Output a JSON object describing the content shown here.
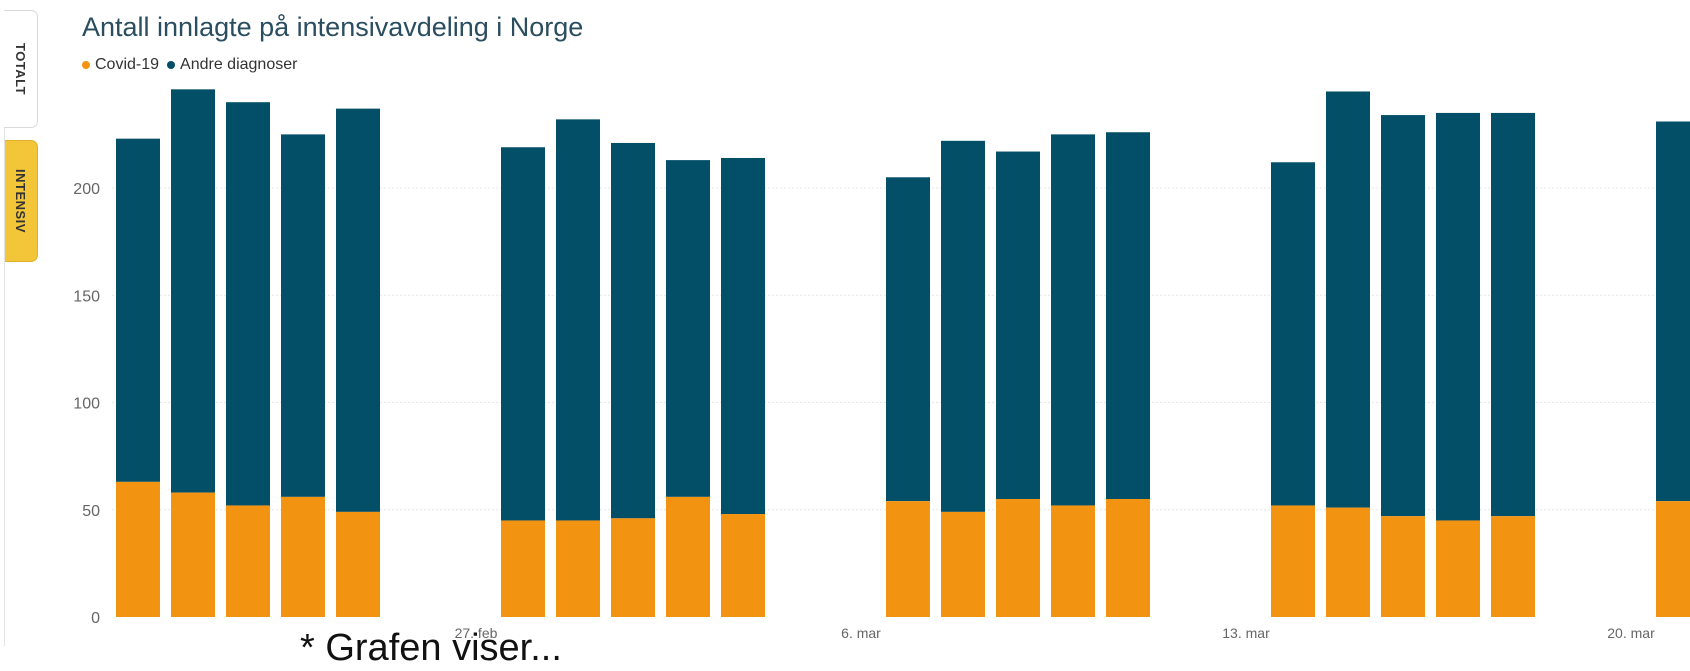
{
  "tabs": [
    {
      "label": "TOTALT",
      "active": false
    },
    {
      "label": "INTENSIV",
      "active": true
    }
  ],
  "colors": {
    "covid": "#f39312",
    "andre": "#044f68",
    "tab_active": "#f3c63a",
    "grid": "#e6e6e6"
  },
  "footnote": "* Grafen viser...",
  "chart_data": {
    "type": "bar",
    "stacked": true,
    "title": "Antall innlagte på intensivavdeling i Norge",
    "legend": [
      "Covid-19",
      "Andre diagnoser"
    ],
    "legend_placement": "top-left",
    "grid": true,
    "ylim": [
      0,
      250
    ],
    "yticks": [
      0,
      50,
      100,
      150,
      200
    ],
    "xticks": [
      "27. feb",
      "6. mar",
      "13. mar",
      "20. mar"
    ],
    "categories": [
      "d01",
      "d02",
      "d03",
      "d04",
      "d05",
      "d06",
      "d07",
      "d08",
      "d09",
      "d10",
      "d11",
      "d12",
      "d13",
      "d14",
      "d15",
      "d16",
      "d17",
      "d18",
      "d19",
      "d20",
      "d21"
    ],
    "series": [
      {
        "name": "Covid-19",
        "values": [
          63,
          58,
          52,
          56,
          49,
          45,
          45,
          46,
          56,
          48,
          54,
          49,
          55,
          52,
          55,
          52,
          51,
          47,
          45,
          47,
          54
        ]
      },
      {
        "name": "Andre diagnoser",
        "values": [
          160,
          188,
          188,
          169,
          188,
          174,
          187,
          175,
          157,
          166,
          151,
          173,
          162,
          173,
          171,
          160,
          194,
          187,
          190,
          188,
          177
        ]
      }
    ]
  }
}
